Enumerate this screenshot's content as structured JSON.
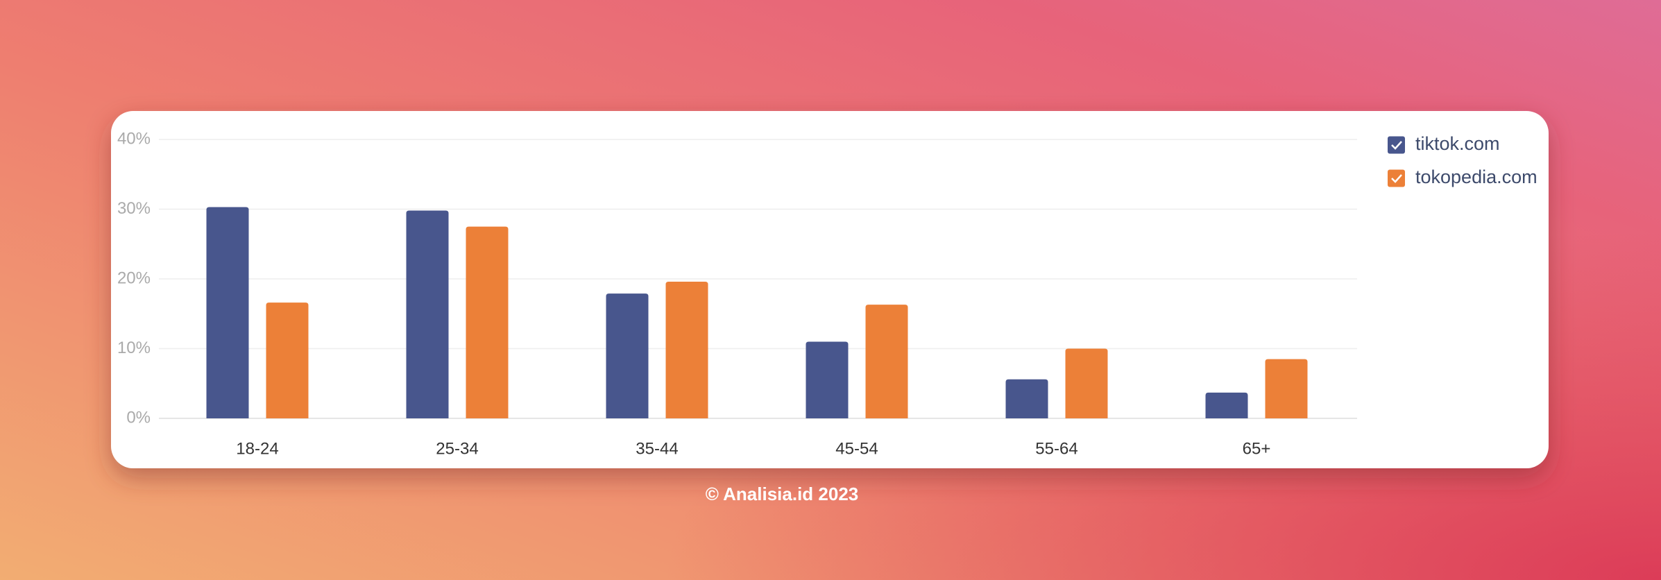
{
  "chart_data": {
    "type": "bar",
    "categories": [
      "18-24",
      "25-34",
      "35-44",
      "45-54",
      "55-64",
      "65+"
    ],
    "series": [
      {
        "name": "tiktok.com",
        "color": "#48568d",
        "values": [
          30.3,
          29.8,
          17.9,
          11.0,
          5.6,
          3.7
        ]
      },
      {
        "name": "tokopedia.com",
        "color": "#ec8038",
        "values": [
          16.6,
          27.5,
          19.6,
          16.3,
          10.0,
          8.5
        ]
      }
    ],
    "ylim": [
      0,
      40
    ],
    "yticks": [
      {
        "value": 0,
        "label": "0%"
      },
      {
        "value": 10,
        "label": "10%"
      },
      {
        "value": 20,
        "label": "20%"
      },
      {
        "value": 30,
        "label": "30%"
      },
      {
        "value": 40,
        "label": "40%"
      }
    ],
    "grid": true,
    "legend": "right"
  },
  "footer": "© Analisia.id 2023"
}
